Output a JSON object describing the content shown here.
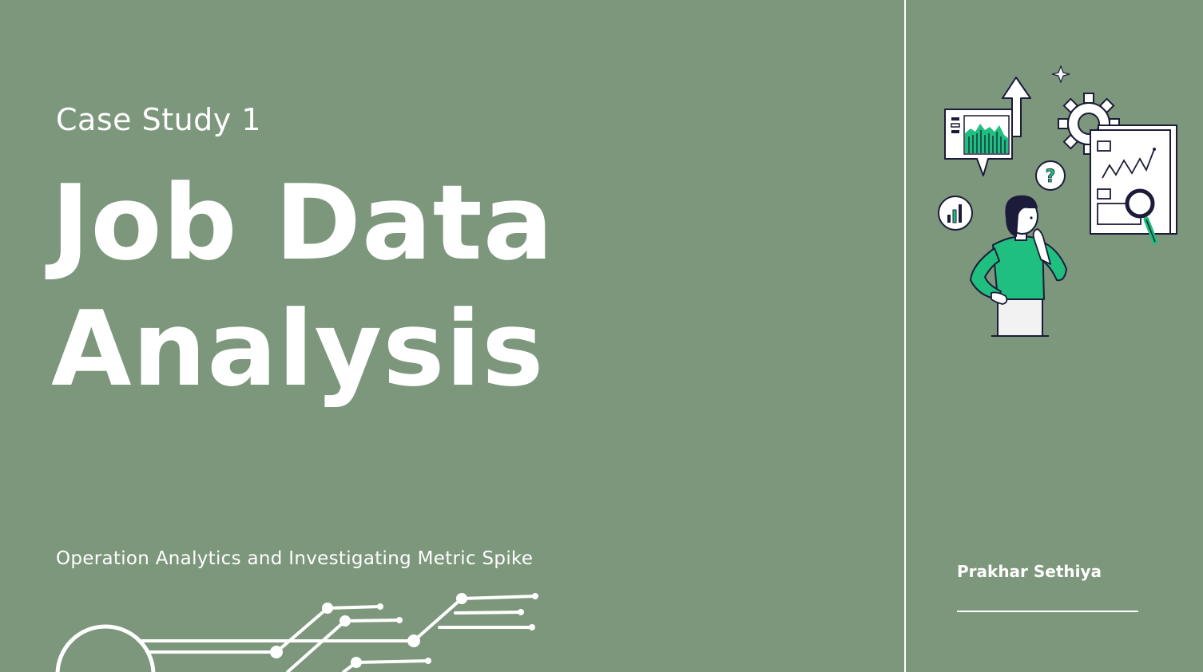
{
  "slide": {
    "kicker": "Case Study 1",
    "title_line1": "Job Data",
    "title_line2": "Analysis",
    "tagline": "Operation Analytics and Investigating Metric Spike",
    "author": "Prakhar Sethiya"
  },
  "colors": {
    "background": "#7c977c",
    "text": "#ffffff",
    "accent_green": "#1fbf7f",
    "ink": "#1c1c3a"
  },
  "icons": {
    "circuit": "circuit-lines-decoration",
    "illustration": "woman-analyzing-data-illustration"
  }
}
